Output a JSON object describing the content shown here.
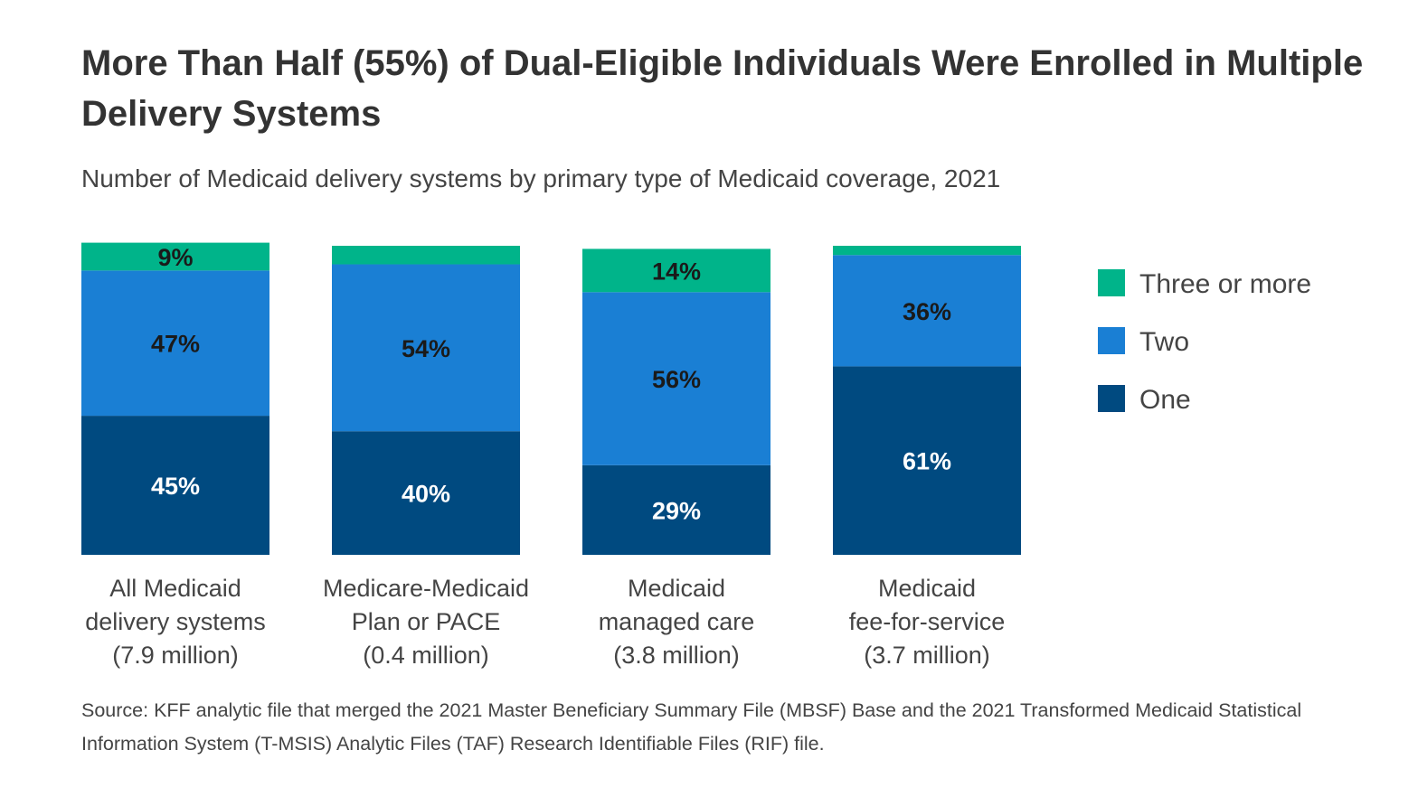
{
  "title": "More Than Half (55%) of Dual-Eligible Individuals Were Enrolled in Multiple Delivery Systems",
  "subtitle": "Number of Medicaid delivery systems by primary type of Medicaid coverage, 2021",
  "source": "Source: KFF analytic file that merged the 2021 Master Beneficiary Summary File (MBSF) Base and the 2021 Transformed Medicaid Statistical Information System (T-MSIS) Analytic Files (TAF) Research Identifiable Files (RIF) file.",
  "colors": {
    "one": "#004a80",
    "two": "#1a7fd4",
    "three_or_more": "#00b48a"
  },
  "chart_data": {
    "type": "bar",
    "stacked": true,
    "ylim": [
      0,
      100
    ],
    "categories": [
      [
        "All Medicaid",
        "delivery systems",
        "(7.9 million)"
      ],
      [
        "Medicare-Medicaid",
        "Plan or PACE",
        "(0.4 million)"
      ],
      [
        "Medicaid",
        "managed care",
        "(3.8 million)"
      ],
      [
        "Medicaid",
        "fee-for-service",
        "(3.7 million)"
      ]
    ],
    "series": [
      {
        "name": "One",
        "color_key": "one",
        "values": [
          45,
          40,
          29,
          61
        ],
        "labels": [
          "45%",
          "40%",
          "29%",
          "61%"
        ]
      },
      {
        "name": "Two",
        "color_key": "two",
        "values": [
          47,
          54,
          56,
          36
        ],
        "labels": [
          "47%",
          "54%",
          "56%",
          "36%"
        ]
      },
      {
        "name": "Three or more",
        "color_key": "three_or_more",
        "values": [
          9,
          6,
          14,
          3
        ],
        "labels": [
          "9%",
          "",
          "14%",
          ""
        ]
      }
    ],
    "legend": [
      "Three or more",
      "Two",
      "One"
    ],
    "legend_position": "right"
  }
}
